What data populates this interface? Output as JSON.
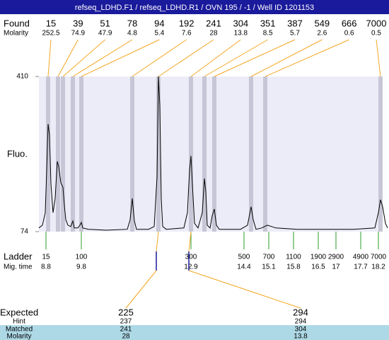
{
  "title": "refseq_LDHD.F1 / refseq_LDHD.R1 / OVN 195 / -1 / Well ID 1201153",
  "chart_data": {
    "type": "electropherogram",
    "ylabel": "Fluo.",
    "ylim": [
      74,
      410
    ],
    "yticks": [
      410,
      74
    ],
    "xlim": [
      8.6,
      18.3
    ],
    "found": {
      "label": "Found",
      "molarity_label": "Molarity",
      "sizes": [
        15,
        39,
        51,
        78,
        94,
        192,
        241,
        304,
        351,
        387,
        549,
        666,
        7000
      ],
      "molarity": [
        252.5,
        74.9,
        47.9,
        4.8,
        5.4,
        7.6,
        28,
        13.8,
        8.5,
        5.7,
        2.6,
        0.6,
        0.5
      ],
      "times": [
        8.86,
        9.14,
        9.28,
        9.56,
        9.8,
        11.24,
        11.98,
        12.9,
        13.28,
        13.56,
        14.6,
        15.0,
        18.26
      ]
    },
    "ladder": {
      "label": "Ladder",
      "time_label": "Mig. time",
      "sizes": [
        15,
        100,
        300,
        500,
        700,
        1100,
        1900,
        2900,
        4900,
        7000
      ],
      "times": [
        8.8,
        9.8,
        12.9,
        14.4,
        15.1,
        15.8,
        16.5,
        17,
        17.7,
        18.2
      ]
    },
    "trace": {
      "x": [
        8.6,
        8.7,
        8.78,
        8.82,
        8.86,
        8.9,
        8.94,
        9.0,
        9.06,
        9.12,
        9.16,
        9.22,
        9.28,
        9.32,
        9.36,
        9.42,
        9.5,
        9.56,
        9.6,
        9.7,
        9.76,
        9.8,
        9.84,
        10.0,
        10.5,
        11.1,
        11.18,
        11.24,
        11.3,
        11.36,
        11.7,
        11.86,
        11.94,
        11.98,
        12.02,
        12.06,
        12.1,
        12.2,
        12.7,
        12.8,
        12.86,
        12.9,
        12.94,
        13.0,
        13.1,
        13.22,
        13.28,
        13.32,
        13.36,
        13.44,
        13.5,
        13.56,
        13.62,
        13.7,
        14.3,
        14.5,
        14.6,
        14.66,
        14.74,
        14.9,
        15.06,
        15.3,
        15.9,
        16.5,
        17.5,
        18.1,
        18.2,
        18.26,
        18.32,
        18.4,
        18.46
      ],
      "values": [
        82,
        88,
        115,
        207,
        307,
        284,
        177,
        115,
        146,
        226,
        215,
        180,
        170,
        131,
        100,
        88,
        85,
        97,
        82,
        82,
        88,
        94,
        82,
        79,
        77,
        79,
        100,
        146,
        97,
        79,
        79,
        85,
        192,
        410,
        346,
        146,
        85,
        79,
        82,
        115,
        207,
        238,
        177,
        92,
        82,
        115,
        189,
        161,
        88,
        82,
        108,
        123,
        88,
        79,
        79,
        88,
        128,
        100,
        79,
        82,
        88,
        82,
        79,
        79,
        79,
        82,
        115,
        143,
        128,
        92,
        82
      ]
    },
    "expected": {
      "label": "Expected",
      "hint_label": "Hint",
      "matched_label": "Matched",
      "molarity_label": "Molarity",
      "values": [
        225,
        294
      ],
      "hint": [
        237,
        294
      ],
      "matched": [
        241,
        304
      ],
      "molarity": [
        28,
        13.8
      ]
    }
  }
}
